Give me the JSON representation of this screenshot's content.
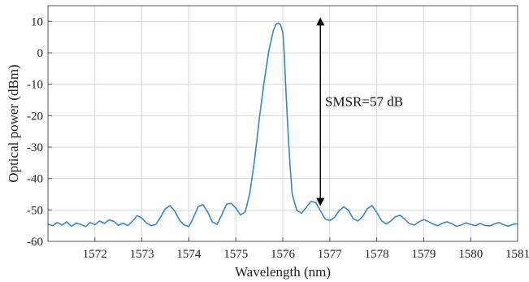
{
  "chart_data": {
    "type": "line",
    "title": "",
    "xlabel": "Wavelength (nm)",
    "ylabel": "Optical power (dBm)",
    "xlim": [
      1571,
      1581
    ],
    "ylim": [
      -60,
      15
    ],
    "xticks": [
      1572,
      1573,
      1574,
      1575,
      1576,
      1577,
      1578,
      1579,
      1580,
      1581
    ],
    "yticks": [
      10,
      0,
      -10,
      -20,
      -30,
      -40,
      -50,
      -60
    ],
    "xtick_labels": [
      "1572",
      "1573",
      "1574",
      "1575",
      "1576",
      "1577",
      "1578",
      "1579",
      "1580",
      "1581"
    ],
    "ytick_labels": [
      "10",
      "0",
      "-10",
      "-20",
      "-30",
      "-40",
      "-50",
      "-60"
    ],
    "grid": true,
    "legend": "none",
    "series": [
      {
        "color": "#3a86c8",
        "x": [
          1571.0,
          1571.1,
          1571.2,
          1571.3,
          1571.4,
          1571.5,
          1571.6,
          1571.7,
          1571.8,
          1571.9,
          1572.0,
          1572.1,
          1572.2,
          1572.3,
          1572.4,
          1572.5,
          1572.6,
          1572.7,
          1572.8,
          1572.9,
          1573.0,
          1573.1,
          1573.2,
          1573.3,
          1573.4,
          1573.5,
          1573.6,
          1573.7,
          1573.8,
          1573.9,
          1574.0,
          1574.1,
          1574.2,
          1574.3,
          1574.4,
          1574.5,
          1574.6,
          1574.7,
          1574.8,
          1574.9,
          1575.0,
          1575.1,
          1575.2,
          1575.3,
          1575.4,
          1575.5,
          1575.6,
          1575.7,
          1575.8,
          1575.85,
          1575.9,
          1575.95,
          1576.0,
          1576.03,
          1576.06,
          1576.1,
          1576.15,
          1576.2,
          1576.3,
          1576.4,
          1576.5,
          1576.6,
          1576.7,
          1576.8,
          1576.9,
          1577.0,
          1577.1,
          1577.2,
          1577.3,
          1577.4,
          1577.5,
          1577.6,
          1577.7,
          1577.8,
          1577.9,
          1578.0,
          1578.1,
          1578.2,
          1578.3,
          1578.4,
          1578.5,
          1578.6,
          1578.7,
          1578.8,
          1578.9,
          1579.0,
          1579.1,
          1579.2,
          1579.3,
          1579.4,
          1579.5,
          1579.6,
          1579.7,
          1579.8,
          1579.9,
          1580.0,
          1580.1,
          1580.2,
          1580.3,
          1580.4,
          1580.5,
          1580.6,
          1580.7,
          1580.8,
          1580.9,
          1581.0
        ],
        "y": [
          -54.5,
          -55.0,
          -54.0,
          -54.8,
          -53.8,
          -55.2,
          -54.2,
          -54.6,
          -55.3,
          -54.0,
          -54.7,
          -53.5,
          -54.3,
          -53.2,
          -53.6,
          -54.9,
          -54.2,
          -55.0,
          -53.6,
          -51.8,
          -52.6,
          -54.2,
          -55.0,
          -54.6,
          -52.2,
          -49.6,
          -48.6,
          -50.4,
          -53.2,
          -54.8,
          -55.3,
          -52.4,
          -48.9,
          -48.3,
          -50.6,
          -53.8,
          -54.6,
          -51.6,
          -48.2,
          -47.9,
          -49.4,
          -51.6,
          -50.6,
          -44.6,
          -34.0,
          -21.0,
          -9.5,
          0.5,
          7.0,
          9.0,
          9.5,
          9.0,
          6.5,
          0.5,
          -10.0,
          -22.0,
          -35.0,
          -45.0,
          -50.2,
          -51.0,
          -49.2,
          -47.3,
          -47.6,
          -50.2,
          -52.8,
          -53.4,
          -52.4,
          -50.2,
          -49.0,
          -50.1,
          -52.8,
          -53.5,
          -52.1,
          -49.6,
          -48.6,
          -50.8,
          -53.4,
          -54.5,
          -53.5,
          -52.1,
          -51.7,
          -53.0,
          -54.4,
          -54.8,
          -53.8,
          -53.1,
          -53.7,
          -54.5,
          -55.0,
          -54.2,
          -53.8,
          -54.4,
          -55.2,
          -54.8,
          -54.1,
          -54.6,
          -55.0,
          -54.3,
          -54.9,
          -55.1,
          -54.5,
          -54.0,
          -54.7,
          -55.2,
          -54.6,
          -54.4
        ]
      }
    ],
    "annotations": [
      {
        "type": "double-arrow",
        "x": 1576.8,
        "y_from": 10.0,
        "y_to": -47.5,
        "color": "#000000"
      },
      {
        "type": "text",
        "text": "SMSR=57 dB",
        "x": 1576.9,
        "y": -17.0
      }
    ]
  }
}
